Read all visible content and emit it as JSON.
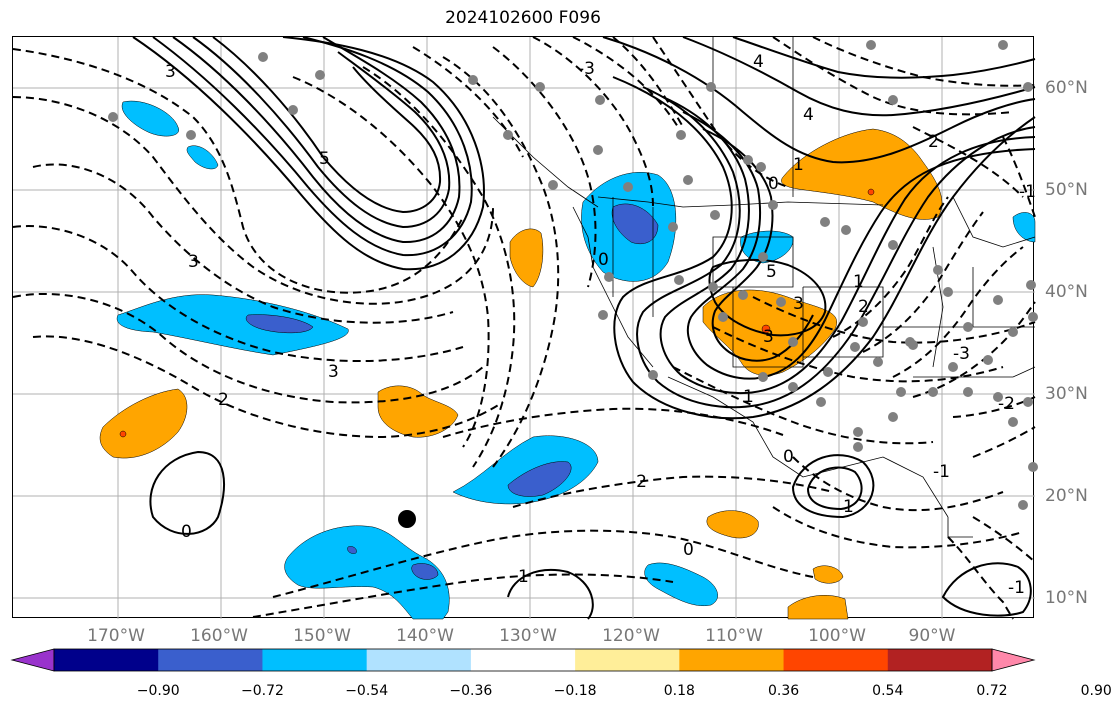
{
  "title": "2024102600 F096",
  "lon_labels": [
    "170°W",
    "160°W",
    "150°W",
    "140°W",
    "130°W",
    "120°W",
    "110°W",
    "100°W",
    "90°W"
  ],
  "lat_labels": [
    "60°N",
    "50°N",
    "40°N",
    "30°N",
    "20°N",
    "10°N"
  ],
  "contour_labels": [
    "5",
    "4",
    "3",
    "3",
    "2",
    "1",
    "0",
    "0",
    "1",
    "2",
    "3",
    "4",
    "5",
    "-3",
    "-2",
    "-1",
    "0",
    "1",
    "3",
    "2",
    "1",
    "0",
    "-3",
    "-2",
    "-1",
    "1",
    "0",
    "-1",
    "3"
  ],
  "colorbar": {
    "ticks": [
      "−0.90",
      "−0.72",
      "−0.54",
      "−0.36",
      "−0.18",
      "0.18",
      "0.36",
      "0.54",
      "0.72",
      "0.90"
    ],
    "colors": [
      "#9933cc",
      "#00008b",
      "#3a5fcd",
      "#00bfff",
      "#b0e2ff",
      "#ffffff",
      "#ffee99",
      "#ffa500",
      "#ff4500",
      "#b22222",
      "#ff88aa"
    ]
  },
  "colors": {
    "grid": "#b0b0b0",
    "contour": "#000000",
    "dot": "#808080",
    "axis_label": "#777777"
  }
}
